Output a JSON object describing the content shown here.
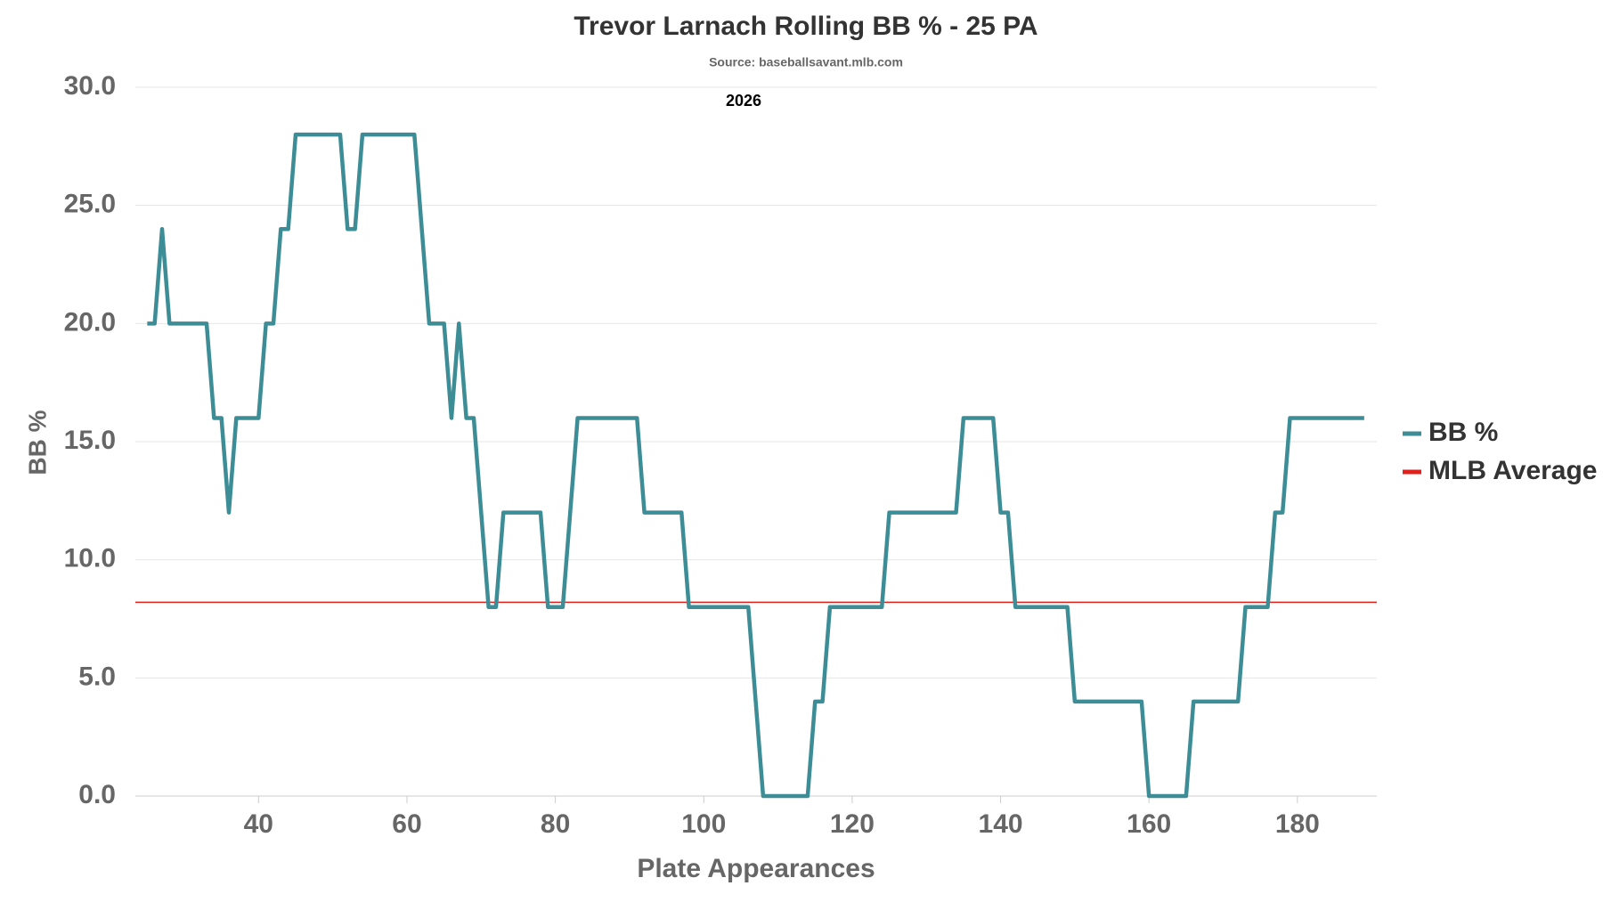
{
  "chart_data": {
    "type": "line",
    "title": "Trevor Larnach Rolling BB % - 25 PA",
    "subtitle": "Source: baseballsavant.mlb.com",
    "annotation": "2026",
    "x_label": "Plate Appearances",
    "y_label": "BB %",
    "x": [
      25,
      26,
      27,
      28,
      29,
      30,
      31,
      32,
      33,
      34,
      35,
      36,
      37,
      38,
      39,
      40,
      41,
      42,
      43,
      44,
      45,
      46,
      47,
      48,
      49,
      50,
      51,
      52,
      53,
      54,
      55,
      56,
      57,
      58,
      59,
      60,
      61,
      62,
      63,
      64,
      65,
      66,
      67,
      68,
      69,
      70,
      71,
      72,
      73,
      74,
      75,
      76,
      77,
      78,
      79,
      80,
      81,
      82,
      83,
      84,
      85,
      86,
      87,
      88,
      89,
      90,
      91,
      92,
      93,
      94,
      95,
      96,
      97,
      98,
      99,
      100,
      101,
      102,
      103,
      104,
      105,
      106,
      107,
      108,
      109,
      110,
      111,
      112,
      113,
      114,
      115,
      116,
      117,
      118,
      119,
      120,
      121,
      122,
      123,
      124,
      125,
      126,
      127,
      128,
      129,
      130,
      131,
      132,
      133,
      134,
      135,
      136,
      137,
      138,
      139,
      140,
      141,
      142,
      143,
      144,
      145,
      146,
      147,
      148,
      149,
      150,
      151,
      152,
      153,
      154,
      155,
      156,
      157,
      158,
      159,
      160,
      161,
      162,
      163,
      164,
      165,
      166,
      167,
      168,
      169,
      170,
      171,
      172,
      173,
      174,
      175,
      176,
      177,
      178,
      179,
      180,
      181,
      182,
      183,
      184,
      185,
      186,
      187,
      188,
      189
    ],
    "series": [
      {
        "name": "BB %",
        "color": "#3d8d96",
        "values": [
          20,
          20,
          24,
          20,
          20,
          20,
          20,
          20,
          20,
          16,
          16,
          12,
          16,
          16,
          16,
          16,
          20,
          20,
          24,
          24,
          28,
          28,
          28,
          28,
          28,
          28,
          28,
          24,
          24,
          28,
          28,
          28,
          28,
          28,
          28,
          28,
          28,
          24,
          20,
          20,
          20,
          16,
          20,
          16,
          16,
          12,
          8,
          8,
          12,
          12,
          12,
          12,
          12,
          12,
          8,
          8,
          8,
          12,
          16,
          16,
          16,
          16,
          16,
          16,
          16,
          16,
          16,
          12,
          12,
          12,
          12,
          12,
          12,
          8,
          8,
          8,
          8,
          8,
          8,
          8,
          8,
          8,
          4,
          0,
          0,
          0,
          0,
          0,
          0,
          0,
          4,
          4,
          8,
          8,
          8,
          8,
          8,
          8,
          8,
          8,
          12,
          12,
          12,
          12,
          12,
          12,
          12,
          12,
          12,
          12,
          16,
          16,
          16,
          16,
          16,
          12,
          12,
          8,
          8,
          8,
          8,
          8,
          8,
          8,
          8,
          4,
          4,
          4,
          4,
          4,
          4,
          4,
          4,
          4,
          4,
          0,
          0,
          0,
          0,
          0,
          0,
          4,
          4,
          4,
          4,
          4,
          4,
          4,
          8,
          8,
          8,
          8,
          12,
          12,
          16,
          16,
          16,
          16,
          16,
          16,
          16,
          16,
          16,
          16,
          16
        ]
      }
    ],
    "reference_lines": [
      {
        "name": "MLB Average",
        "color": "#e0201b",
        "value": 8.2
      }
    ],
    "xlim": [
      23.4,
      190.7
    ],
    "ylim": [
      0,
      30
    ],
    "xticks": [
      40,
      60,
      80,
      100,
      120,
      140,
      160,
      180
    ],
    "yticks": [
      {
        "value": 0,
        "label": "0.0"
      },
      {
        "value": 5,
        "label": "5.0"
      },
      {
        "value": 10,
        "label": "10.0"
      },
      {
        "value": 15,
        "label": "15.0"
      },
      {
        "value": 20,
        "label": "20.0"
      },
      {
        "value": 25,
        "label": "25.0"
      },
      {
        "value": 30,
        "label": "30.0"
      }
    ],
    "grid": true,
    "legend": "right"
  }
}
